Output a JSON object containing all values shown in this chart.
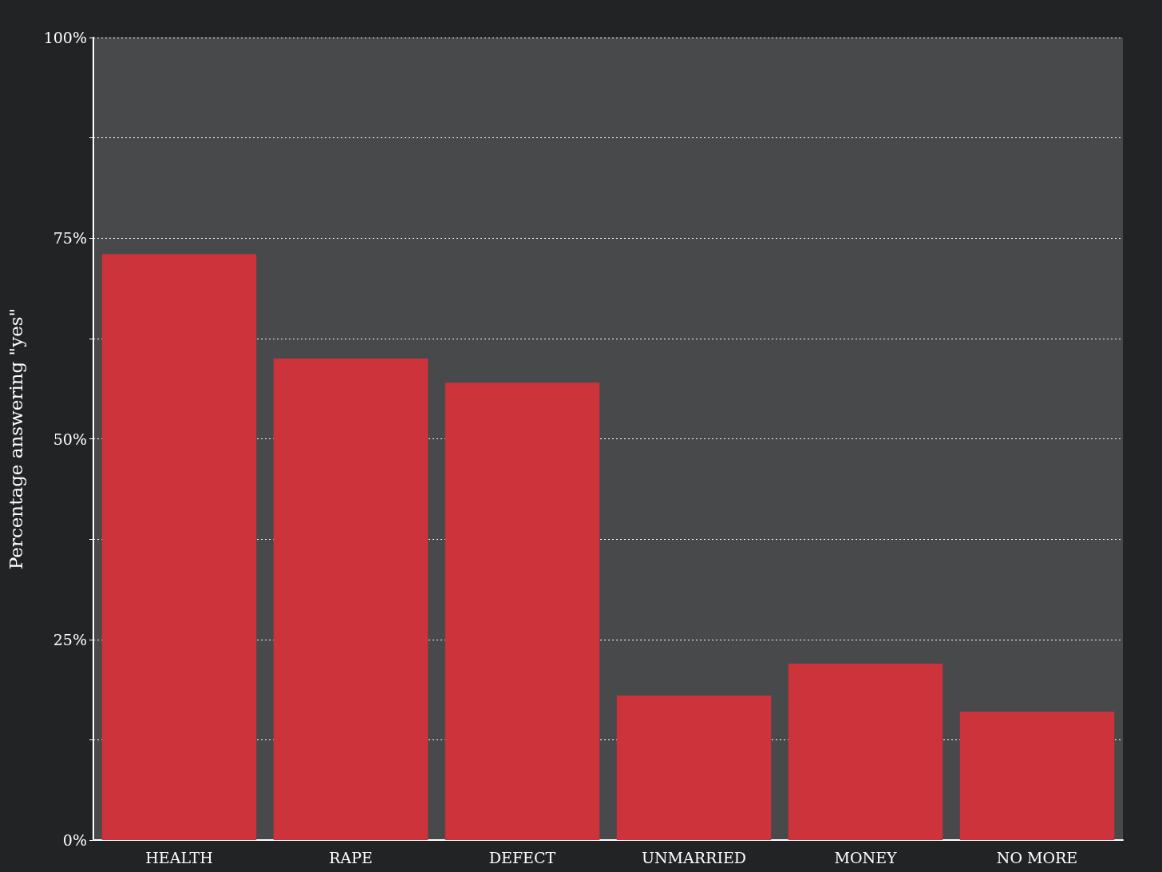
{
  "chart_data": {
    "type": "bar",
    "ylabel": "Percentage answering \"yes\"",
    "categories": [
      "HEALTH",
      "RAPE",
      "DEFECT",
      "UNMARRIED",
      "MONEY",
      "NO MORE"
    ],
    "values": [
      73,
      60,
      57,
      18,
      22,
      16
    ],
    "color": "#cc333a",
    "ylim": [
      0,
      100
    ],
    "yticks": [
      {
        "value": 0,
        "label": "0%"
      },
      {
        "value": 12.5,
        "label": null
      },
      {
        "value": 25,
        "label": "25%"
      },
      {
        "value": 37.5,
        "label": null
      },
      {
        "value": 50,
        "label": "50%"
      },
      {
        "value": 62.5,
        "label": null
      },
      {
        "value": 75,
        "label": "75%"
      },
      {
        "value": 87.5,
        "label": null
      },
      {
        "value": 100,
        "label": "100%"
      }
    ],
    "grid": "y"
  }
}
